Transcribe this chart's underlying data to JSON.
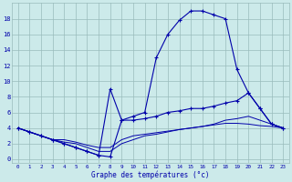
{
  "xlabel": "Graphe des températures (°c)",
  "bg_color": "#cceaea",
  "line_color": "#0000aa",
  "grid_color": "#99bbbb",
  "xlim": [
    -0.5,
    23.5
  ],
  "ylim": [
    -0.5,
    20
  ],
  "xticks": [
    0,
    1,
    2,
    3,
    4,
    5,
    6,
    7,
    8,
    9,
    10,
    11,
    12,
    13,
    14,
    15,
    16,
    17,
    18,
    19,
    20,
    21,
    22,
    23
  ],
  "yticks": [
    0,
    2,
    4,
    6,
    8,
    10,
    12,
    14,
    16,
    18
  ],
  "line1_x": [
    0,
    1,
    2,
    3,
    4,
    5,
    6,
    7,
    8,
    9,
    10,
    11,
    12,
    13,
    14,
    15,
    16,
    17,
    18,
    19,
    20,
    21,
    22,
    23
  ],
  "line1_y": [
    4,
    3.5,
    3,
    2.5,
    2,
    1.5,
    1,
    0.5,
    0.3,
    5,
    5.5,
    6,
    13,
    16,
    17.8,
    19,
    19,
    18.5,
    18,
    11.5,
    8.5,
    6.5,
    4.5,
    4
  ],
  "line2_x": [
    0,
    1,
    2,
    3,
    4,
    5,
    6,
    7,
    8,
    9,
    10,
    11,
    12,
    13,
    14,
    15,
    16,
    17,
    18,
    19,
    20,
    21,
    22,
    23
  ],
  "line2_y": [
    4,
    3.5,
    3,
    2.5,
    2,
    1.5,
    1,
    0.5,
    9,
    5,
    5,
    5.2,
    5.5,
    6,
    6.2,
    6.5,
    6.5,
    6.8,
    7.2,
    7.5,
    8.5,
    6.5,
    4.5,
    4
  ],
  "line3_x": [
    0,
    1,
    2,
    3,
    4,
    5,
    6,
    7,
    8,
    9,
    10,
    11,
    12,
    13,
    14,
    15,
    16,
    17,
    18,
    19,
    20,
    21,
    22,
    23
  ],
  "line3_y": [
    4,
    3.5,
    3.0,
    2.5,
    2.5,
    2.2,
    1.8,
    1.5,
    1.5,
    2.5,
    3.0,
    3.2,
    3.4,
    3.6,
    3.8,
    4.0,
    4.2,
    4.4,
    4.6,
    4.6,
    4.5,
    4.3,
    4.2,
    4.0
  ],
  "line4_x": [
    0,
    1,
    2,
    3,
    4,
    5,
    6,
    7,
    8,
    9,
    10,
    11,
    12,
    13,
    14,
    15,
    16,
    17,
    18,
    19,
    20,
    21,
    22,
    23
  ],
  "line4_y": [
    4,
    3.5,
    3.0,
    2.5,
    2.2,
    2.0,
    1.5,
    1.0,
    1.0,
    2.0,
    2.5,
    3.0,
    3.2,
    3.5,
    3.8,
    4.0,
    4.2,
    4.5,
    5.0,
    5.2,
    5.5,
    5.0,
    4.5,
    4.0
  ]
}
